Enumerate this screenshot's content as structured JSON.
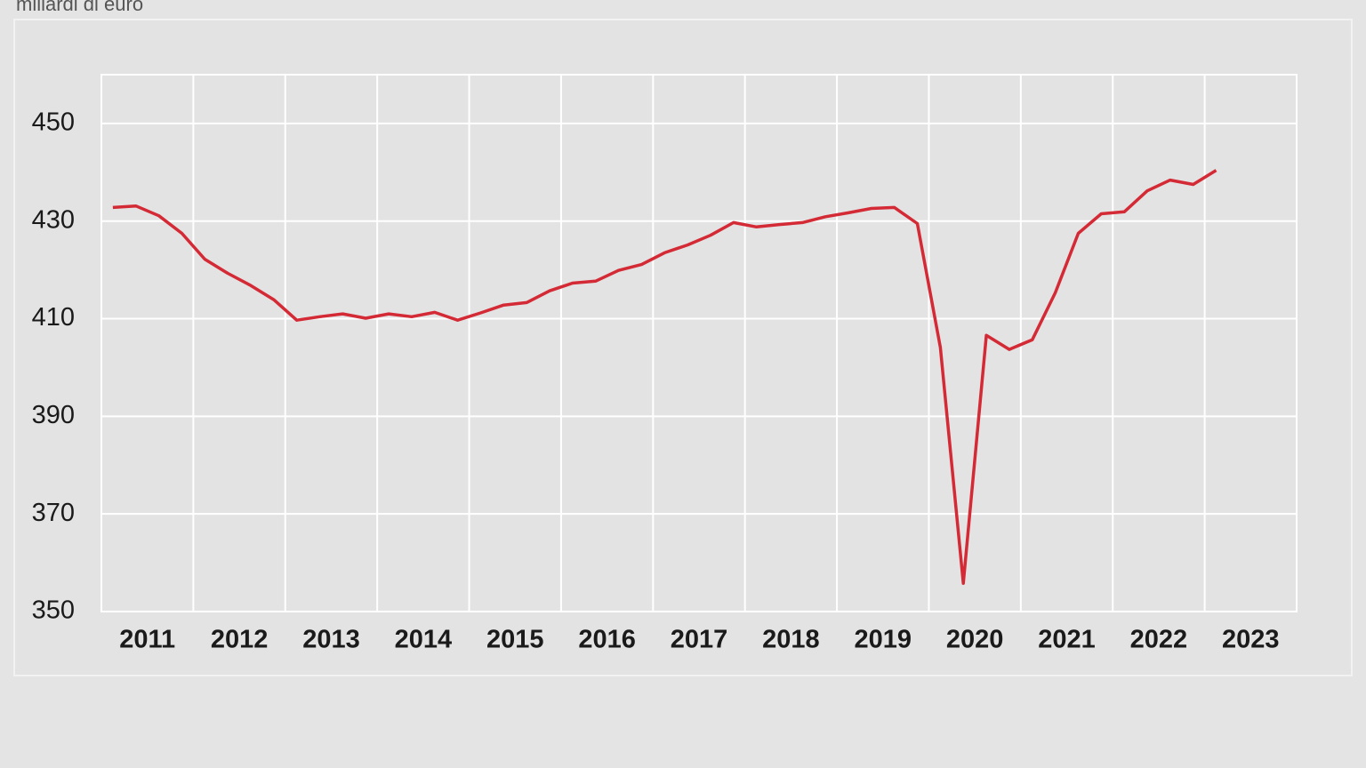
{
  "chart_data": {
    "type": "line",
    "title": "miliardi di euro",
    "categories": [
      "2011",
      null,
      null,
      null,
      "2012",
      null,
      null,
      null,
      "2013",
      null,
      null,
      null,
      "2014",
      null,
      null,
      null,
      "2015",
      null,
      null,
      null,
      "2016",
      null,
      null,
      null,
      "2017",
      null,
      null,
      null,
      "2018",
      null,
      null,
      null,
      "2019",
      null,
      null,
      null,
      "2020",
      null,
      null,
      null,
      "2021",
      null,
      null,
      null,
      "2022",
      null,
      null,
      null,
      "2023",
      null,
      null,
      null
    ],
    "series": [
      {
        "color": "#d42a35",
        "values": [
          432.8,
          433.1,
          431.1,
          427.5,
          422.2,
          419.3,
          416.8,
          413.9,
          409.7,
          410.4,
          411.0,
          410.1,
          411.0,
          410.4,
          411.3,
          409.7,
          411.2,
          412.8,
          413.3,
          415.7,
          417.3,
          417.7,
          419.9,
          421.1,
          423.5,
          425.1,
          427.1,
          429.7,
          428.8,
          429.3,
          429.7,
          430.9,
          431.7,
          432.6,
          432.8,
          429.5,
          404.1,
          355.8,
          406.6,
          403.7,
          405.7,
          415.3,
          427.5,
          431.5,
          431.9,
          436.2,
          438.4,
          437.5,
          440.4,
          null,
          null,
          null
        ]
      }
    ],
    "ylim": [
      350,
      460
    ],
    "yticks": [
      350,
      370,
      390,
      410,
      430,
      450
    ],
    "grid": true
  }
}
